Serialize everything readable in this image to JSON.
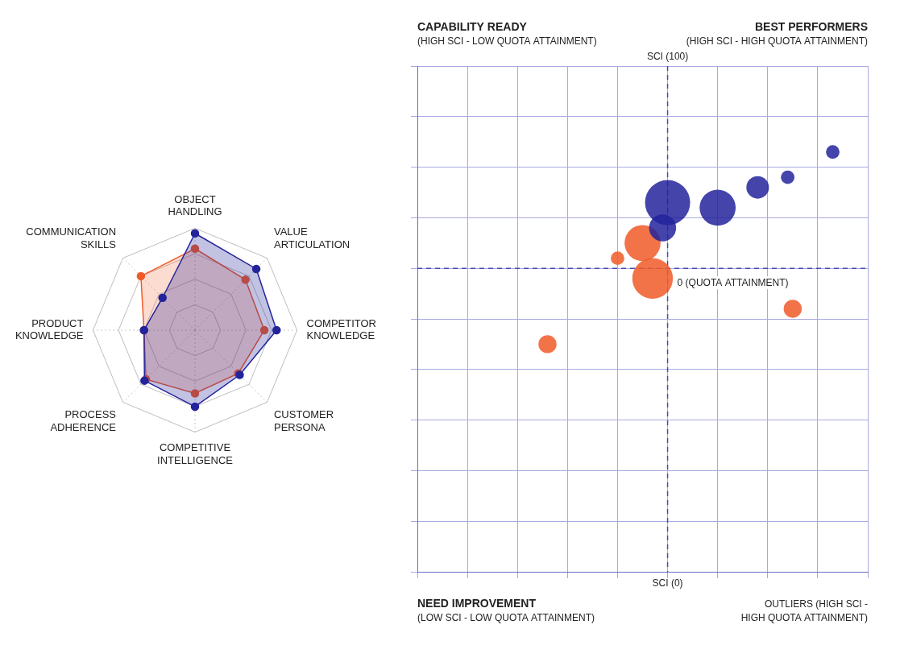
{
  "chart_data": [
    {
      "type": "radar",
      "categories": [
        "OBJECT HANDLING",
        "VALUE ARTICULATION",
        "COMPETITOR KNOWLEDGE",
        "CUSTOMER PERSONA",
        "COMPETITIVE INTELLIGENCE",
        "PROCESS ADHERENCE",
        "PRODUCT KNOWLEDGE",
        "COMMUNICATION SKILLS"
      ],
      "series": [
        {
          "color": "#23239c",
          "values": [
            95,
            85,
            80,
            62,
            75,
            70,
            50,
            45
          ]
        },
        {
          "color": "#f05a28",
          "values": [
            80,
            70,
            68,
            60,
            62,
            68,
            50,
            75
          ]
        }
      ],
      "ylim": [
        0,
        100
      ],
      "yticks": [
        0,
        25,
        50,
        75,
        100
      ],
      "grid": true,
      "tick_labels": false,
      "marker": "circle"
    },
    {
      "type": "bubble",
      "series": [
        {
          "color": "#23239c",
          "x": [
            5.0,
            6.0,
            6.8,
            7.4,
            8.3,
            4.9
          ],
          "y": [
            7.3,
            7.2,
            7.6,
            7.8,
            8.3,
            6.8
          ],
          "size": [
            10,
            8,
            5,
            3,
            3,
            6
          ]
        },
        {
          "color": "#f05a28",
          "x": [
            4.5,
            4.7,
            4.0,
            7.5,
            2.6
          ],
          "y": [
            6.5,
            5.8,
            6.2,
            5.2,
            4.5
          ],
          "size": [
            8,
            9,
            3,
            4,
            4
          ]
        }
      ],
      "xlim": [
        0,
        9
      ],
      "xticks": [
        0,
        1,
        2,
        3,
        4,
        5,
        6,
        7,
        8,
        9
      ],
      "ylim": [
        0,
        10
      ],
      "yticks": [
        0,
        1,
        2,
        3,
        4,
        5,
        6,
        7,
        8,
        9,
        10
      ],
      "grid": true,
      "tick_labels": false,
      "divider_x": 5,
      "divider_y": 6,
      "divider_labels": {
        "top": "SCI (100)",
        "bottom": "SCI (0)",
        "center": "0 (QUOTA ATTAINMENT)"
      },
      "quadrants": {
        "top_left": [
          "CAPABILITY READY",
          "(HIGH SCI - LOW QUOTA ATTAINMENT)"
        ],
        "top_right": [
          "BEST PERFORMERS",
          "(HIGH SCI - HIGH QUOTA ATTAINMENT)"
        ],
        "bottom_left": [
          "NEED IMPROVEMENT",
          "(LOW SCI - LOW QUOTA ATTAINMENT)"
        ],
        "bottom_right": [
          "OUTLIERS (HIGH SCI -",
          "HIGH QUOTA ATTAINMENT)"
        ]
      }
    }
  ]
}
